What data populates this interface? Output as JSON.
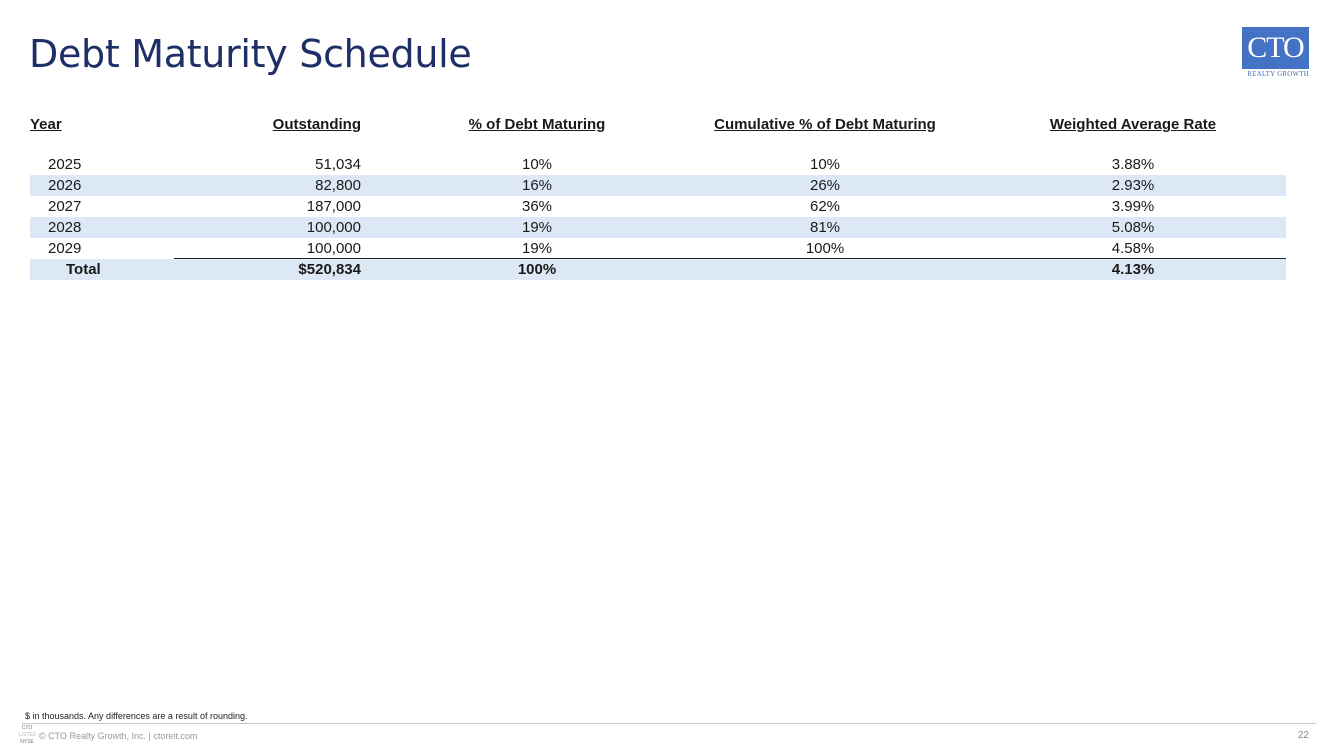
{
  "slide": {
    "title": "Debt Maturity Schedule",
    "logo": {
      "text": "CTO",
      "subtext": "REALTY GROWTH"
    },
    "page_number": "22"
  },
  "table": {
    "headers": [
      "Year",
      "Outstanding",
      "% of Debt Maturing",
      "Cumulative % of Debt Maturing",
      "Weighted Average Rate"
    ],
    "rows": [
      {
        "year": "2025",
        "outstanding": "51,034",
        "pct": "10%",
        "cumulative": "10%",
        "rate": "3.88%"
      },
      {
        "year": "2026",
        "outstanding": "82,800",
        "pct": "16%",
        "cumulative": "26%",
        "rate": "2.93%"
      },
      {
        "year": "2027",
        "outstanding": "187,000",
        "pct": "36%",
        "cumulative": "62%",
        "rate": "3.99%"
      },
      {
        "year": "2028",
        "outstanding": "100,000",
        "pct": "19%",
        "cumulative": "81%",
        "rate": "5.08%"
      },
      {
        "year": "2029",
        "outstanding": "100,000",
        "pct": "19%",
        "cumulative": "100%",
        "rate": "4.58%"
      }
    ],
    "total": {
      "label": "Total",
      "outstanding": "$520,834",
      "pct": "100%",
      "cumulative": "",
      "rate": "4.13%"
    }
  },
  "footer": {
    "note": "$ in thousands. Any differences are a result of rounding.",
    "ticker_top": "CTO",
    "ticker_mid": "LISTED",
    "ticker_bottom": "NYSE",
    "copyright": "© CTO Realty Growth, Inc. | ctoreit.com"
  },
  "colors": {
    "title": "#1d2f66",
    "logo_bg": "#4472c4",
    "row_shade": "#dce8f5"
  }
}
